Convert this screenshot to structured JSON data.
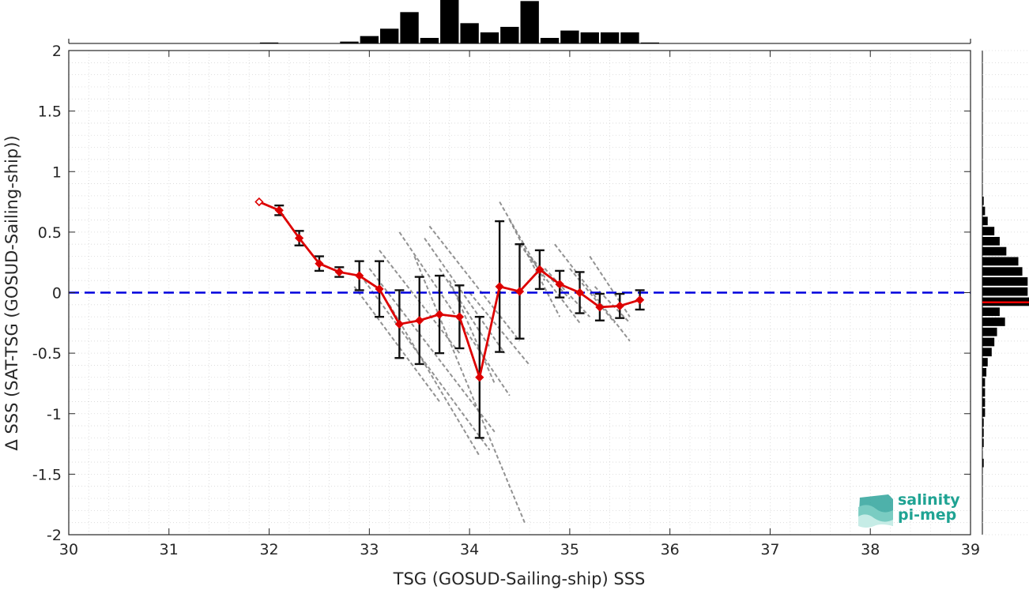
{
  "chart_data": {
    "type": "scatter",
    "xlabel": "TSG (GOSUD-Sailing-ship) SSS",
    "ylabel": "Δ SSS (SAT-TSG (GOSUD-Sailing-ship))",
    "xlim": [
      30,
      39
    ],
    "ylim": [
      -2,
      2
    ],
    "x_ticks": [
      "30",
      "31",
      "32",
      "33",
      "34",
      "35",
      "36",
      "37",
      "38",
      "39"
    ],
    "y_ticks": [
      "2",
      "1.5",
      "1",
      "0.5",
      "0",
      "-0.5",
      "-1",
      "-1.5",
      "-2"
    ],
    "grid": "dotted",
    "zero_line": {
      "y": 0,
      "color": "#0000dd",
      "style": "dashed"
    },
    "binned_mean": {
      "name": "",
      "color": "#dd0000",
      "x": [
        31.9,
        32.1,
        32.3,
        32.5,
        32.7,
        32.9,
        33.1,
        33.3,
        33.5,
        33.7,
        33.9,
        34.1,
        34.3,
        34.5,
        34.7,
        34.9,
        35.1,
        35.3,
        35.5,
        35.7
      ],
      "y": [
        0.75,
        0.68,
        0.45,
        0.24,
        0.17,
        0.14,
        0.03,
        -0.26,
        -0.23,
        -0.18,
        -0.2,
        -0.7,
        0.05,
        0.01,
        0.19,
        0.07,
        0.0,
        -0.12,
        -0.11,
        -0.06
      ],
      "std": [
        0.0,
        0.04,
        0.06,
        0.06,
        0.04,
        0.12,
        0.23,
        0.28,
        0.36,
        0.32,
        0.26,
        0.5,
        0.54,
        0.39,
        0.16,
        0.11,
        0.17,
        0.11,
        0.1,
        0.08
      ]
    },
    "scatter_streaks": [
      {
        "x0": 33.3,
        "y0": 0.5,
        "x1": 34.4,
        "y1": -0.85
      },
      {
        "x0": 33.55,
        "y0": 0.45,
        "x1": 34.35,
        "y1": -0.5
      },
      {
        "x0": 33.45,
        "y0": 0.3,
        "x1": 34.55,
        "y1": -1.9
      },
      {
        "x0": 33.0,
        "y0": 0.2,
        "x1": 34.25,
        "y1": -1.15
      },
      {
        "x0": 32.95,
        "y0": 0.1,
        "x1": 34.2,
        "y1": -1.3
      },
      {
        "x0": 33.6,
        "y0": 0.55,
        "x1": 34.5,
        "y1": -0.4
      },
      {
        "x0": 33.1,
        "y0": 0.35,
        "x1": 33.9,
        "y1": -0.5
      },
      {
        "x0": 33.2,
        "y0": -0.1,
        "x1": 34.1,
        "y1": -1.35
      },
      {
        "x0": 32.85,
        "y0": 0.05,
        "x1": 33.7,
        "y1": -0.9
      },
      {
        "x0": 33.7,
        "y0": 0.2,
        "x1": 34.2,
        "y1": -0.45
      },
      {
        "x0": 34.3,
        "y0": 0.75,
        "x1": 34.75,
        "y1": 0.1
      },
      {
        "x0": 34.4,
        "y0": 0.6,
        "x1": 34.9,
        "y1": -0.2
      },
      {
        "x0": 34.5,
        "y0": 0.4,
        "x1": 35.1,
        "y1": -0.25
      },
      {
        "x0": 34.6,
        "y0": 0.3,
        "x1": 35.0,
        "y1": -0.05
      },
      {
        "x0": 34.75,
        "y0": 0.2,
        "x1": 35.2,
        "y1": -0.2
      },
      {
        "x0": 34.85,
        "y0": 0.4,
        "x1": 35.6,
        "y1": -0.4
      },
      {
        "x0": 35.2,
        "y0": 0.3,
        "x1": 35.6,
        "y1": -0.2
      },
      {
        "x0": 35.0,
        "y0": 0.2,
        "x1": 35.45,
        "y1": -0.25
      },
      {
        "x0": 35.25,
        "y0": 0.05,
        "x1": 35.6,
        "y1": -0.25
      },
      {
        "x0": 33.8,
        "y0": 0.1,
        "x1": 34.25,
        "y1": -0.75
      },
      {
        "x0": 34.0,
        "y0": 0.0,
        "x1": 34.6,
        "y1": -0.6
      }
    ],
    "top_histogram": {
      "bin_start": 31.9,
      "bin_width": 0.2,
      "counts": [
        0.5,
        0,
        0,
        0,
        1,
        4,
        8,
        17,
        3,
        24,
        11,
        6,
        9,
        23,
        3,
        7,
        6,
        6,
        6,
        0.5
      ]
    },
    "right_histogram": {
      "bin_start": 0.8,
      "bin_width": -0.0833,
      "counts": [
        1,
        2,
        4,
        9,
        13,
        18,
        27,
        30,
        34,
        34,
        35,
        13,
        17,
        11,
        9,
        7,
        4,
        3,
        2,
        2,
        2,
        2,
        1,
        1,
        1,
        0,
        1
      ],
      "mean_line": {
        "y": -0.08,
        "color": "#ee0000"
      }
    },
    "colors": {
      "mean": "#dd0000",
      "errorbar": "#111111",
      "scatter": "#808080",
      "zero": "#0000dd",
      "hist": "#000000"
    }
  },
  "logo": {
    "line1": "salinity",
    "line2": "pi-mep"
  }
}
